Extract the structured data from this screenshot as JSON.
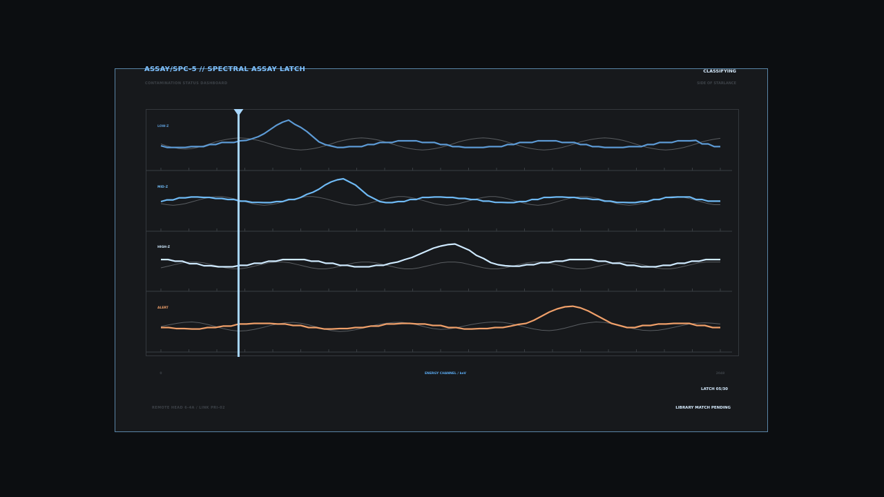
{
  "header": {
    "title": "ASSAY/SPC-5 // SPECTRAL ASSAY LATCH",
    "subtitle": "CONTAMINATION STATUS DASHBOARD",
    "status": "CLASSIFYING",
    "status_sub": "SIDE OF STARLANCE"
  },
  "footer": {
    "left": "REMOTE HEAD 6-4A  /  LINK PRI-02",
    "latch": "LATCH 05/30",
    "match": "LIBRARY MATCH PENDING"
  },
  "colors": {
    "low": "#5d9bd6",
    "mid": "#6fbaf5",
    "high": "#cfeaff",
    "alert": "#f0a06a",
    "cursor": "#a9d8ff",
    "baseline": "#6b6f74",
    "grid": "#3a3e43"
  },
  "chart_data": {
    "type": "line",
    "x_label": "ENERGY CHANNEL / keV",
    "x_min_label": "0",
    "x_max_label": "2048",
    "x_range": [
      0,
      100
    ],
    "cursor_x": 14,
    "tracks": [
      {
        "name": "LOW-Z",
        "color_key": "low",
        "values": [
          0.36,
          0.28,
          0.28,
          0.28,
          0.28,
          0.32,
          0.32,
          0.32,
          0.42,
          0.42,
          0.52,
          0.52,
          0.52,
          0.6,
          0.62,
          0.7,
          0.8,
          0.95,
          1.15,
          1.35,
          1.5,
          1.6,
          1.4,
          1.25,
          1.05,
          0.8,
          0.55,
          0.42,
          0.35,
          0.28,
          0.28,
          0.32,
          0.32,
          0.32,
          0.42,
          0.42,
          0.52,
          0.52,
          0.52,
          0.6,
          0.6,
          0.6,
          0.6,
          0.52,
          0.52,
          0.52,
          0.42,
          0.42,
          0.32,
          0.32,
          0.28,
          0.28,
          0.28,
          0.28,
          0.32,
          0.32,
          0.32,
          0.42,
          0.42,
          0.52,
          0.52,
          0.52,
          0.6,
          0.6,
          0.6,
          0.6,
          0.52,
          0.52,
          0.52,
          0.42,
          0.42,
          0.32,
          0.32,
          0.28,
          0.28,
          0.28,
          0.28,
          0.32,
          0.32,
          0.32,
          0.42,
          0.42,
          0.52,
          0.52,
          0.52,
          0.6,
          0.6,
          0.6,
          0.62,
          0.45,
          0.45,
          0.32,
          0.32
        ],
        "baseline": [
          0.45,
          0.35,
          0.28,
          0.22,
          0.2,
          0.22,
          0.28,
          0.36,
          0.45,
          0.55,
          0.62,
          0.68,
          0.72,
          0.74,
          0.72,
          0.68,
          0.62,
          0.54,
          0.45,
          0.36,
          0.28,
          0.22,
          0.18,
          0.16,
          0.18,
          0.22,
          0.28,
          0.36,
          0.45,
          0.55,
          0.62,
          0.68,
          0.72,
          0.74,
          0.72,
          0.68,
          0.62,
          0.54,
          0.45,
          0.36,
          0.28,
          0.22,
          0.18,
          0.16,
          0.18,
          0.22,
          0.28,
          0.36,
          0.45,
          0.55,
          0.62,
          0.68,
          0.72,
          0.74,
          0.72,
          0.68,
          0.62,
          0.54,
          0.45,
          0.36,
          0.28,
          0.22,
          0.18,
          0.16,
          0.18,
          0.22,
          0.28,
          0.36,
          0.45,
          0.55,
          0.62,
          0.68,
          0.72,
          0.74,
          0.72,
          0.68,
          0.62,
          0.54,
          0.45,
          0.36,
          0.28,
          0.22,
          0.18,
          0.16,
          0.18,
          0.22,
          0.28,
          0.36,
          0.45,
          0.55,
          0.62,
          0.68,
          0.72
        ]
      },
      {
        "name": "MID-Z",
        "color_key": "mid",
        "values": [
          0.6,
          0.68,
          0.68,
          0.78,
          0.78,
          0.82,
          0.82,
          0.8,
          0.8,
          0.75,
          0.75,
          0.7,
          0.7,
          0.62,
          0.62,
          0.56,
          0.56,
          0.55,
          0.55,
          0.6,
          0.6,
          0.7,
          0.7,
          0.8,
          0.95,
          1.05,
          1.2,
          1.4,
          1.55,
          1.65,
          1.7,
          1.55,
          1.4,
          1.15,
          0.9,
          0.75,
          0.6,
          0.55,
          0.55,
          0.6,
          0.6,
          0.7,
          0.7,
          0.8,
          0.8,
          0.82,
          0.82,
          0.8,
          0.8,
          0.75,
          0.75,
          0.7,
          0.7,
          0.62,
          0.62,
          0.56,
          0.56,
          0.55,
          0.55,
          0.6,
          0.6,
          0.7,
          0.7,
          0.8,
          0.8,
          0.82,
          0.82,
          0.8,
          0.8,
          0.75,
          0.75,
          0.7,
          0.7,
          0.62,
          0.62,
          0.56,
          0.56,
          0.55,
          0.55,
          0.6,
          0.6,
          0.7,
          0.7,
          0.8,
          0.8,
          0.82,
          0.82,
          0.82,
          0.7,
          0.7,
          0.62,
          0.62,
          0.62
        ],
        "baseline": [
          0.5,
          0.45,
          0.42,
          0.45,
          0.5,
          0.58,
          0.66,
          0.74,
          0.8,
          0.84,
          0.84,
          0.8,
          0.74,
          0.66,
          0.58,
          0.5,
          0.45,
          0.42,
          0.45,
          0.5,
          0.58,
          0.66,
          0.74,
          0.8,
          0.84,
          0.84,
          0.8,
          0.74,
          0.66,
          0.58,
          0.5,
          0.45,
          0.42,
          0.45,
          0.5,
          0.58,
          0.66,
          0.74,
          0.8,
          0.84,
          0.84,
          0.8,
          0.74,
          0.66,
          0.58,
          0.5,
          0.45,
          0.42,
          0.45,
          0.5,
          0.58,
          0.66,
          0.74,
          0.8,
          0.84,
          0.84,
          0.8,
          0.74,
          0.66,
          0.58,
          0.5,
          0.45,
          0.42,
          0.45,
          0.5,
          0.58,
          0.66,
          0.74,
          0.8,
          0.84,
          0.84,
          0.8,
          0.74,
          0.66,
          0.58,
          0.5,
          0.45,
          0.42,
          0.45,
          0.5,
          0.58,
          0.66,
          0.74,
          0.8,
          0.84,
          0.84,
          0.8,
          0.74,
          0.66,
          0.58,
          0.5,
          0.45,
          0.45
        ]
      },
      {
        "name": "HIGH-Z",
        "color_key": "high",
        "values": [
          0.7,
          0.7,
          0.62,
          0.62,
          0.5,
          0.5,
          0.4,
          0.4,
          0.35,
          0.35,
          0.35,
          0.42,
          0.42,
          0.52,
          0.52,
          0.62,
          0.62,
          0.7,
          0.7,
          0.7,
          0.7,
          0.62,
          0.62,
          0.52,
          0.52,
          0.42,
          0.42,
          0.35,
          0.35,
          0.35,
          0.42,
          0.42,
          0.52,
          0.58,
          0.7,
          0.8,
          0.95,
          1.1,
          1.25,
          1.35,
          1.42,
          1.45,
          1.3,
          1.15,
          0.9,
          0.75,
          0.55,
          0.45,
          0.4,
          0.38,
          0.38,
          0.45,
          0.45,
          0.55,
          0.55,
          0.62,
          0.62,
          0.7,
          0.7,
          0.7,
          0.7,
          0.62,
          0.62,
          0.52,
          0.52,
          0.42,
          0.42,
          0.35,
          0.35,
          0.35,
          0.42,
          0.42,
          0.52,
          0.52,
          0.62,
          0.62,
          0.7,
          0.7,
          0.7
        ],
        "baseline": [
          0.3,
          0.38,
          0.46,
          0.54,
          0.58,
          0.58,
          0.54,
          0.46,
          0.38,
          0.3,
          0.25,
          0.25,
          0.3,
          0.38,
          0.46,
          0.54,
          0.58,
          0.58,
          0.54,
          0.46,
          0.38,
          0.3,
          0.25,
          0.25,
          0.3,
          0.38,
          0.46,
          0.54,
          0.58,
          0.58,
          0.54,
          0.46,
          0.38,
          0.3,
          0.25,
          0.25,
          0.3,
          0.38,
          0.46,
          0.54,
          0.58,
          0.58,
          0.54,
          0.46,
          0.38,
          0.3,
          0.25,
          0.25,
          0.3,
          0.38,
          0.46,
          0.54,
          0.58,
          0.58,
          0.54,
          0.46,
          0.38,
          0.3,
          0.25,
          0.25,
          0.3,
          0.38,
          0.46,
          0.54,
          0.58,
          0.58,
          0.54,
          0.46,
          0.38,
          0.3,
          0.25,
          0.25,
          0.3,
          0.38,
          0.46,
          0.54,
          0.58,
          0.58,
          0.58
        ]
      },
      {
        "name": "ALERT",
        "color_key": "alert",
        "values": [
          0.35,
          0.35,
          0.3,
          0.3,
          0.28,
          0.28,
          0.35,
          0.35,
          0.42,
          0.42,
          0.52,
          0.52,
          0.55,
          0.55,
          0.55,
          0.52,
          0.52,
          0.45,
          0.45,
          0.35,
          0.35,
          0.28,
          0.28,
          0.3,
          0.3,
          0.35,
          0.35,
          0.42,
          0.42,
          0.52,
          0.52,
          0.55,
          0.55,
          0.52,
          0.52,
          0.45,
          0.45,
          0.35,
          0.35,
          0.28,
          0.28,
          0.3,
          0.3,
          0.35,
          0.35,
          0.42,
          0.5,
          0.55,
          0.7,
          0.9,
          1.1,
          1.25,
          1.35,
          1.38,
          1.3,
          1.15,
          0.95,
          0.75,
          0.55,
          0.45,
          0.35,
          0.35,
          0.45,
          0.45,
          0.52,
          0.52,
          0.55,
          0.55,
          0.55,
          0.45,
          0.45,
          0.35,
          0.35
        ],
        "baseline": [
          0.4,
          0.48,
          0.55,
          0.6,
          0.62,
          0.58,
          0.5,
          0.4,
          0.3,
          0.22,
          0.18,
          0.2,
          0.26,
          0.34,
          0.44,
          0.52,
          0.58,
          0.6,
          0.56,
          0.48,
          0.38,
          0.28,
          0.2,
          0.16,
          0.18,
          0.24,
          0.32,
          0.42,
          0.5,
          0.56,
          0.6,
          0.6,
          0.56,
          0.48,
          0.38,
          0.3,
          0.26,
          0.28,
          0.34,
          0.42,
          0.5,
          0.56,
          0.6,
          0.62,
          0.6,
          0.54,
          0.46,
          0.36,
          0.28,
          0.22,
          0.2,
          0.24,
          0.32,
          0.42,
          0.52,
          0.58,
          0.62,
          0.6,
          0.54,
          0.46,
          0.36,
          0.28,
          0.22,
          0.2,
          0.22,
          0.28,
          0.36,
          0.44,
          0.52,
          0.56,
          0.58,
          0.56,
          0.52
        ]
      }
    ]
  }
}
